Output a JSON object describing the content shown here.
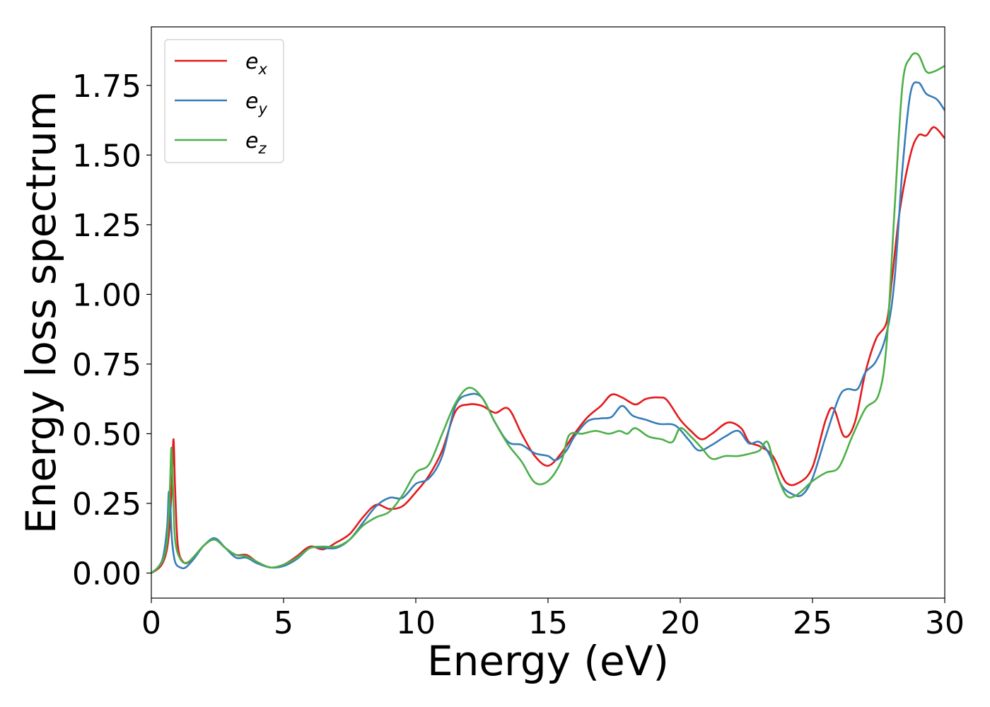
{
  "chart_data": {
    "type": "line",
    "title": "",
    "xlabel": "Energy (eV)",
    "ylabel": "Energy loss spectrum",
    "xlim": [
      0,
      30
    ],
    "ylim": [
      -0.09,
      1.96
    ],
    "xticks": [
      0,
      5,
      10,
      15,
      20,
      25,
      30
    ],
    "yticks": [
      0.0,
      0.25,
      0.5,
      0.75,
      1.0,
      1.25,
      1.5,
      1.75
    ],
    "xtick_labels": [
      "0",
      "5",
      "10",
      "15",
      "20",
      "25",
      "30"
    ],
    "ytick_labels": [
      "0.00",
      "0.25",
      "0.50",
      "0.75",
      "1.00",
      "1.25",
      "1.50",
      "1.75"
    ],
    "grid": false,
    "legend_position": "top-left",
    "series": [
      {
        "name": "e",
        "subscript": "x",
        "color": "#e41a1c",
        "points": [
          [
            0,
            0.0
          ],
          [
            0.25,
            0.015
          ],
          [
            0.45,
            0.04
          ],
          [
            0.6,
            0.09
          ],
          [
            0.7,
            0.18
          ],
          [
            0.78,
            0.33
          ],
          [
            0.84,
            0.48
          ],
          [
            0.9,
            0.3
          ],
          [
            1.0,
            0.1
          ],
          [
            1.2,
            0.04
          ],
          [
            1.5,
            0.045
          ],
          [
            2.0,
            0.1
          ],
          [
            2.4,
            0.12
          ],
          [
            2.8,
            0.09
          ],
          [
            3.2,
            0.065
          ],
          [
            3.6,
            0.065
          ],
          [
            4.0,
            0.04
          ],
          [
            4.5,
            0.02
          ],
          [
            5.0,
            0.03
          ],
          [
            5.5,
            0.06
          ],
          [
            6.0,
            0.095
          ],
          [
            6.5,
            0.085
          ],
          [
            7.0,
            0.11
          ],
          [
            7.5,
            0.14
          ],
          [
            8.0,
            0.2
          ],
          [
            8.5,
            0.245
          ],
          [
            9.0,
            0.23
          ],
          [
            9.5,
            0.24
          ],
          [
            10.0,
            0.29
          ],
          [
            10.5,
            0.35
          ],
          [
            11.0,
            0.44
          ],
          [
            11.5,
            0.58
          ],
          [
            12.0,
            0.605
          ],
          [
            12.5,
            0.6
          ],
          [
            13.0,
            0.575
          ],
          [
            13.5,
            0.59
          ],
          [
            14.0,
            0.5
          ],
          [
            14.5,
            0.42
          ],
          [
            15.0,
            0.385
          ],
          [
            15.5,
            0.43
          ],
          [
            16.0,
            0.5
          ],
          [
            16.5,
            0.56
          ],
          [
            17.0,
            0.6
          ],
          [
            17.4,
            0.64
          ],
          [
            17.8,
            0.63
          ],
          [
            18.3,
            0.605
          ],
          [
            18.7,
            0.625
          ],
          [
            19.2,
            0.63
          ],
          [
            19.5,
            0.62
          ],
          [
            20.0,
            0.55
          ],
          [
            20.4,
            0.51
          ],
          [
            20.8,
            0.48
          ],
          [
            21.2,
            0.5
          ],
          [
            21.8,
            0.54
          ],
          [
            22.3,
            0.52
          ],
          [
            22.6,
            0.47
          ],
          [
            23.0,
            0.455
          ],
          [
            23.5,
            0.42
          ],
          [
            24.0,
            0.325
          ],
          [
            24.5,
            0.325
          ],
          [
            25.0,
            0.38
          ],
          [
            25.5,
            0.55
          ],
          [
            25.8,
            0.59
          ],
          [
            26.2,
            0.49
          ],
          [
            26.6,
            0.54
          ],
          [
            27.0,
            0.72
          ],
          [
            27.4,
            0.84
          ],
          [
            27.8,
            0.9
          ],
          [
            28.0,
            1.05
          ],
          [
            28.3,
            1.3
          ],
          [
            28.7,
            1.5
          ],
          [
            29.0,
            1.57
          ],
          [
            29.3,
            1.57
          ],
          [
            29.6,
            1.6
          ],
          [
            30.0,
            1.56
          ]
        ]
      },
      {
        "name": "e",
        "subscript": "y",
        "color": "#377eb8",
        "points": [
          [
            0,
            0.0
          ],
          [
            0.25,
            0.02
          ],
          [
            0.45,
            0.06
          ],
          [
            0.6,
            0.17
          ],
          [
            0.66,
            0.29
          ],
          [
            0.72,
            0.24
          ],
          [
            0.78,
            0.12
          ],
          [
            0.9,
            0.04
          ],
          [
            1.1,
            0.02
          ],
          [
            1.3,
            0.02
          ],
          [
            1.6,
            0.05
          ],
          [
            2.0,
            0.1
          ],
          [
            2.4,
            0.125
          ],
          [
            2.8,
            0.09
          ],
          [
            3.2,
            0.055
          ],
          [
            3.6,
            0.055
          ],
          [
            4.0,
            0.035
          ],
          [
            4.5,
            0.02
          ],
          [
            5.0,
            0.025
          ],
          [
            5.5,
            0.05
          ],
          [
            6.0,
            0.09
          ],
          [
            6.5,
            0.09
          ],
          [
            7.0,
            0.09
          ],
          [
            7.5,
            0.12
          ],
          [
            8.0,
            0.18
          ],
          [
            8.5,
            0.24
          ],
          [
            9.0,
            0.27
          ],
          [
            9.5,
            0.27
          ],
          [
            10.0,
            0.32
          ],
          [
            10.5,
            0.34
          ],
          [
            11.0,
            0.42
          ],
          [
            11.5,
            0.6
          ],
          [
            12.0,
            0.64
          ],
          [
            12.5,
            0.63
          ],
          [
            13.0,
            0.54
          ],
          [
            13.5,
            0.47
          ],
          [
            14.0,
            0.46
          ],
          [
            14.5,
            0.43
          ],
          [
            15.0,
            0.42
          ],
          [
            15.3,
            0.405
          ],
          [
            15.7,
            0.44
          ],
          [
            16.0,
            0.49
          ],
          [
            16.5,
            0.545
          ],
          [
            17.0,
            0.555
          ],
          [
            17.4,
            0.56
          ],
          [
            17.8,
            0.6
          ],
          [
            18.2,
            0.565
          ],
          [
            18.7,
            0.55
          ],
          [
            19.2,
            0.535
          ],
          [
            19.8,
            0.53
          ],
          [
            20.3,
            0.48
          ],
          [
            20.7,
            0.44
          ],
          [
            21.2,
            0.46
          ],
          [
            21.7,
            0.49
          ],
          [
            22.2,
            0.51
          ],
          [
            22.6,
            0.465
          ],
          [
            23.0,
            0.47
          ],
          [
            23.4,
            0.42
          ],
          [
            23.8,
            0.32
          ],
          [
            24.2,
            0.285
          ],
          [
            24.6,
            0.28
          ],
          [
            25.0,
            0.34
          ],
          [
            25.5,
            0.49
          ],
          [
            26.0,
            0.63
          ],
          [
            26.3,
            0.66
          ],
          [
            26.7,
            0.66
          ],
          [
            27.0,
            0.72
          ],
          [
            27.4,
            0.76
          ],
          [
            27.8,
            0.86
          ],
          [
            28.1,
            1.05
          ],
          [
            28.4,
            1.45
          ],
          [
            28.7,
            1.72
          ],
          [
            29.0,
            1.76
          ],
          [
            29.3,
            1.72
          ],
          [
            29.7,
            1.7
          ],
          [
            30.0,
            1.66
          ]
        ]
      },
      {
        "name": "e",
        "subscript": "z",
        "color": "#4daf4a",
        "points": [
          [
            0,
            0.0
          ],
          [
            0.25,
            0.02
          ],
          [
            0.45,
            0.05
          ],
          [
            0.6,
            0.12
          ],
          [
            0.7,
            0.3
          ],
          [
            0.76,
            0.45
          ],
          [
            0.82,
            0.3
          ],
          [
            0.9,
            0.12
          ],
          [
            1.1,
            0.05
          ],
          [
            1.4,
            0.04
          ],
          [
            2.0,
            0.1
          ],
          [
            2.4,
            0.12
          ],
          [
            2.8,
            0.09
          ],
          [
            3.2,
            0.065
          ],
          [
            3.6,
            0.06
          ],
          [
            4.0,
            0.04
          ],
          [
            4.5,
            0.02
          ],
          [
            5.0,
            0.03
          ],
          [
            5.5,
            0.055
          ],
          [
            6.0,
            0.09
          ],
          [
            6.5,
            0.095
          ],
          [
            7.0,
            0.095
          ],
          [
            7.5,
            0.12
          ],
          [
            8.0,
            0.17
          ],
          [
            8.5,
            0.2
          ],
          [
            9.0,
            0.22
          ],
          [
            9.5,
            0.28
          ],
          [
            10.0,
            0.36
          ],
          [
            10.5,
            0.39
          ],
          [
            11.0,
            0.5
          ],
          [
            11.5,
            0.61
          ],
          [
            12.0,
            0.665
          ],
          [
            12.5,
            0.63
          ],
          [
            13.0,
            0.54
          ],
          [
            13.5,
            0.46
          ],
          [
            14.0,
            0.4
          ],
          [
            14.5,
            0.325
          ],
          [
            15.0,
            0.33
          ],
          [
            15.5,
            0.4
          ],
          [
            15.8,
            0.495
          ],
          [
            16.3,
            0.5
          ],
          [
            16.8,
            0.51
          ],
          [
            17.3,
            0.5
          ],
          [
            17.7,
            0.51
          ],
          [
            18.0,
            0.5
          ],
          [
            18.3,
            0.52
          ],
          [
            18.8,
            0.49
          ],
          [
            19.3,
            0.48
          ],
          [
            19.7,
            0.47
          ],
          [
            20.0,
            0.52
          ],
          [
            20.4,
            0.49
          ],
          [
            20.8,
            0.45
          ],
          [
            21.2,
            0.41
          ],
          [
            21.7,
            0.42
          ],
          [
            22.2,
            0.42
          ],
          [
            22.7,
            0.43
          ],
          [
            23.0,
            0.44
          ],
          [
            23.3,
            0.47
          ],
          [
            23.6,
            0.37
          ],
          [
            24.0,
            0.28
          ],
          [
            24.4,
            0.28
          ],
          [
            25.0,
            0.33
          ],
          [
            25.5,
            0.36
          ],
          [
            26.0,
            0.38
          ],
          [
            26.5,
            0.49
          ],
          [
            27.0,
            0.59
          ],
          [
            27.5,
            0.64
          ],
          [
            27.8,
            0.82
          ],
          [
            28.1,
            1.3
          ],
          [
            28.4,
            1.75
          ],
          [
            28.7,
            1.85
          ],
          [
            29.0,
            1.86
          ],
          [
            29.3,
            1.8
          ],
          [
            29.6,
            1.8
          ],
          [
            30.0,
            1.82
          ]
        ]
      }
    ]
  }
}
